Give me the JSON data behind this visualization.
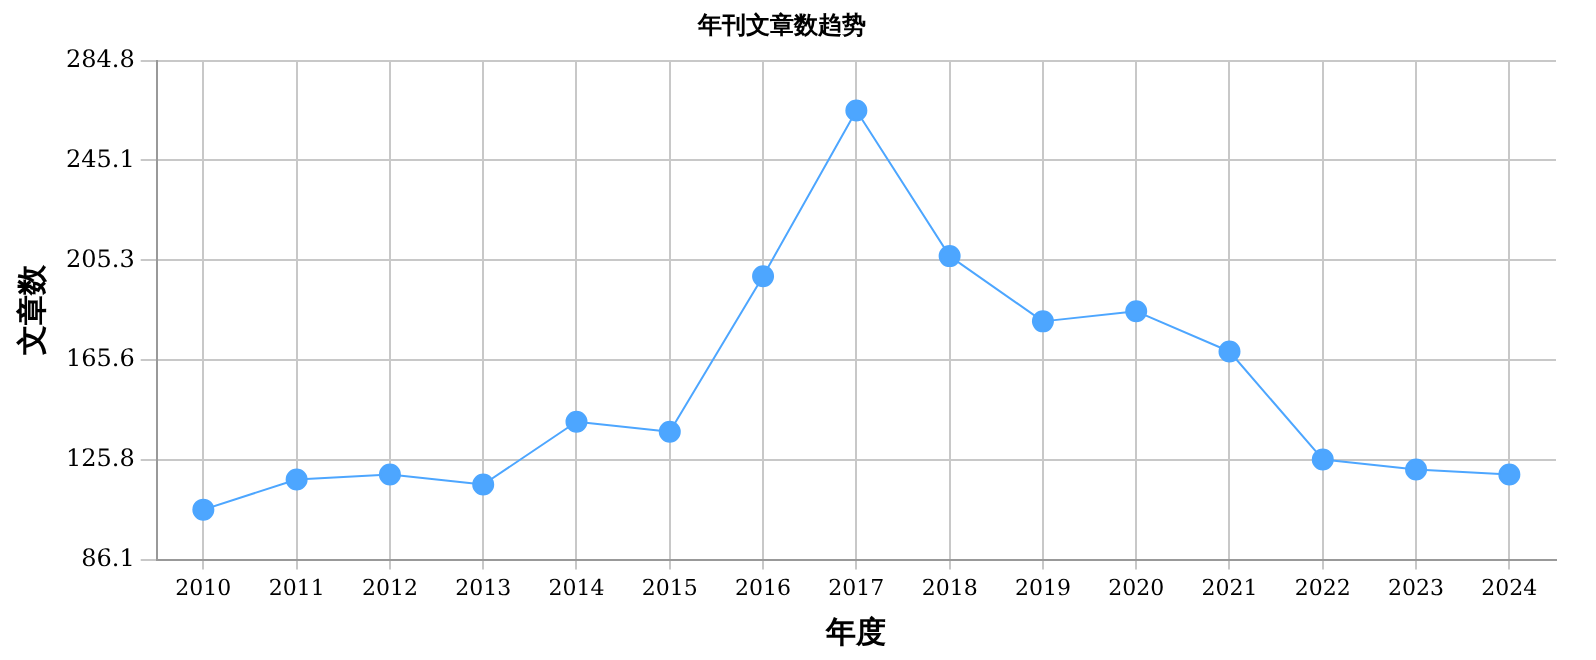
{
  "chart_data": {
    "type": "line",
    "title": "年刊文章数趋势",
    "xlabel": "年度",
    "ylabel": "文章数",
    "categories": [
      "2010",
      "2011",
      "2012",
      "2013",
      "2014",
      "2015",
      "2016",
      "2017",
      "2018",
      "2019",
      "2020",
      "2021",
      "2022",
      "2023",
      "2024"
    ],
    "series": [
      {
        "color": "#4da6ff",
        "values": [
          106,
          118,
          120,
          116,
          141,
          137,
          199,
          265,
          207,
          181,
          185,
          169,
          126,
          122,
          120
        ]
      }
    ],
    "ylim": [
      86.1,
      284.8
    ],
    "yticks": [
      86.1,
      125.8,
      165.6,
      205.3,
      245.1,
      284.8
    ],
    "grid": true,
    "legend": false,
    "marker": "circle",
    "line_style": "solid"
  }
}
